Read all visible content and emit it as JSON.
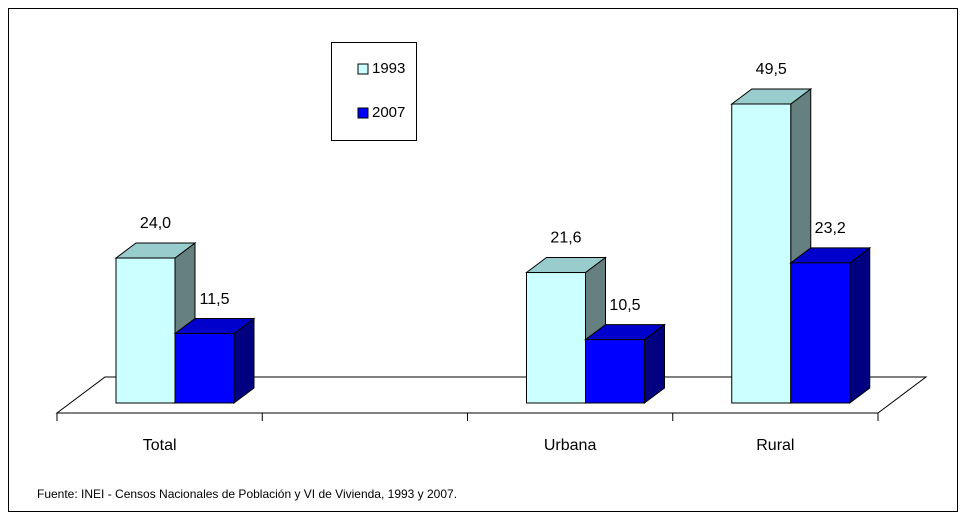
{
  "chart_data": {
    "type": "bar3d",
    "categories": [
      "Total",
      null,
      "Urbana",
      "Rural"
    ],
    "series": [
      {
        "name": "1993",
        "color": "#ccffff",
        "values": [
          24.0,
          null,
          21.6,
          49.5
        ],
        "value_labels": [
          "24,0",
          null,
          "21,6",
          "49,5"
        ]
      },
      {
        "name": "2007",
        "color": "#0000ff",
        "values": [
          11.5,
          null,
          10.5,
          23.2
        ],
        "value_labels": [
          "11,5",
          null,
          "10,5",
          "23,2"
        ]
      }
    ],
    "source": "Fuente: INEI - Censos Nacionales de Población y VI de Vivienda, 1993 y 2007."
  }
}
